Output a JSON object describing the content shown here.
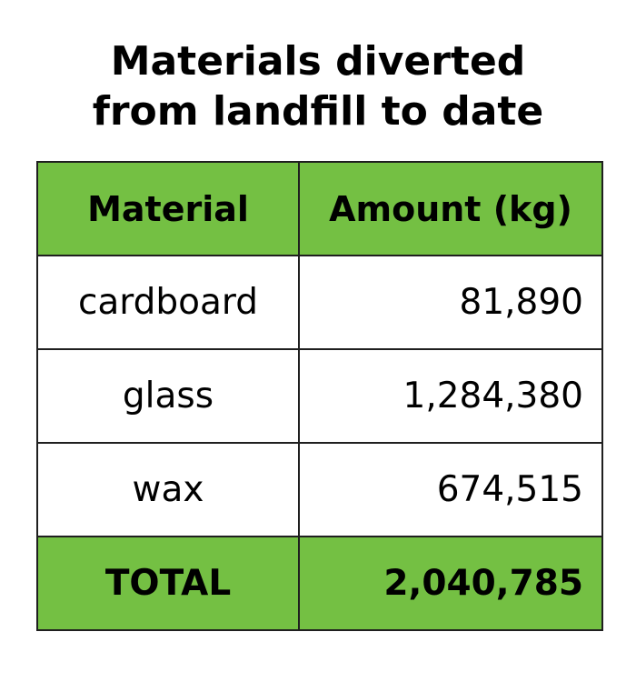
{
  "title": {
    "line1": "Materials diverted",
    "line2": "from landfill to date"
  },
  "chart_data": {
    "type": "table",
    "title": "Materials diverted from landfill to date",
    "columns": [
      "Material",
      "Amount (kg)"
    ],
    "rows": [
      {
        "material": "cardboard",
        "amount": "81,890"
      },
      {
        "material": "glass",
        "amount": "1,284,380"
      },
      {
        "material": "wax",
        "amount": "674,515"
      }
    ],
    "total": {
      "label": "TOTAL",
      "amount": "2,040,785"
    },
    "colors": {
      "header_fill": "#74c043",
      "total_fill": "#74c043",
      "border": "#1f1f1f"
    }
  }
}
